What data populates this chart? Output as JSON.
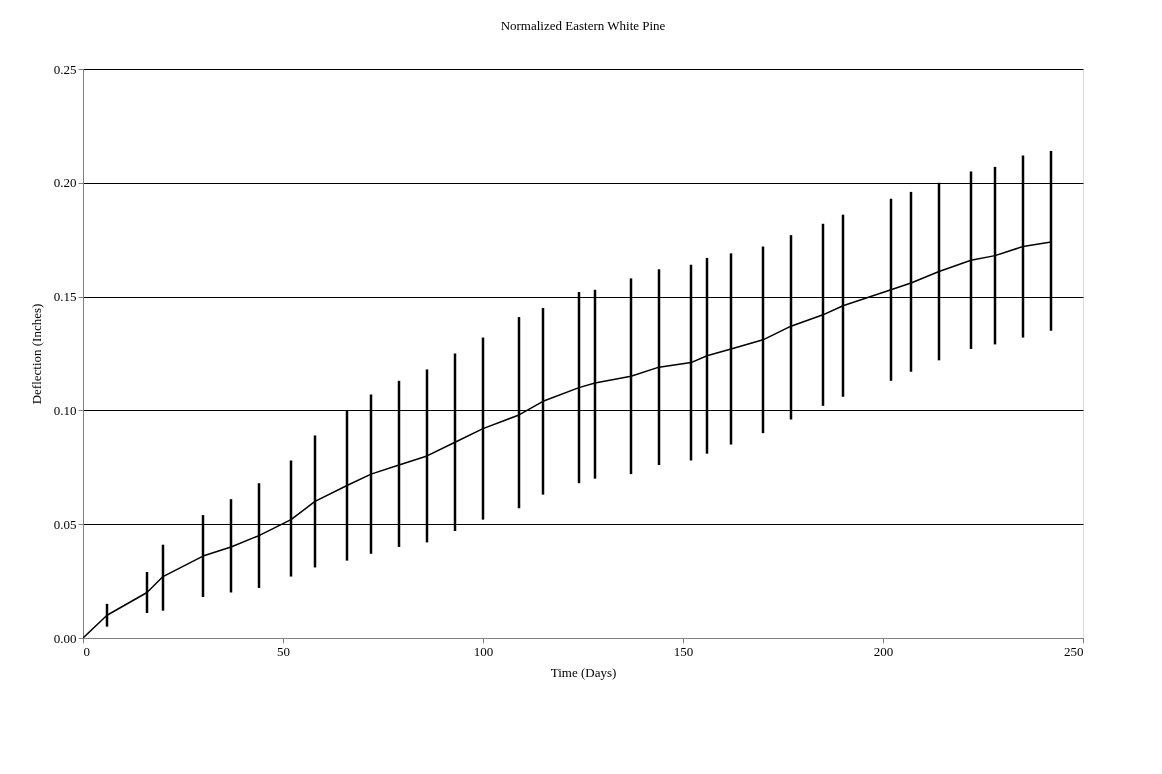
{
  "chart_data": {
    "type": "line",
    "title": "Normalized Eastern White Pine",
    "xlabel": "Time (Days)",
    "ylabel": "Deflection (Inches)",
    "x": [
      0,
      6,
      16,
      20,
      30,
      37,
      44,
      52,
      58,
      66,
      72,
      79,
      86,
      93,
      100,
      109,
      115,
      124,
      128,
      137,
      144,
      152,
      156,
      162,
      170,
      177,
      185,
      190,
      202,
      207,
      214,
      222,
      228,
      235,
      242
    ],
    "series": [
      {
        "color": "#000000",
        "values": [
          0,
          0.01,
          0.02,
          0.027,
          0.036,
          0.04,
          0.045,
          0.052,
          0.06,
          0.067,
          0.072,
          0.076,
          0.08,
          0.086,
          0.092,
          0.098,
          0.104,
          0.11,
          0.112,
          0.115,
          0.119,
          0.121,
          0.124,
          0.127,
          0.131,
          0.137,
          0.142,
          0.146,
          0.153,
          0.156,
          0.161,
          0.166,
          0.168,
          0.172,
          0.174
        ],
        "errors": [
          null,
          [
            0.005,
            0.015
          ],
          [
            0.011,
            0.029
          ],
          [
            0.012,
            0.041
          ],
          [
            0.018,
            0.054
          ],
          [
            0.02,
            0.061
          ],
          [
            0.022,
            0.068
          ],
          [
            0.027,
            0.078
          ],
          [
            0.031,
            0.089
          ],
          [
            0.034,
            0.1
          ],
          [
            0.037,
            0.107
          ],
          [
            0.04,
            0.113
          ],
          [
            0.042,
            0.118
          ],
          [
            0.047,
            0.125
          ],
          [
            0.052,
            0.132
          ],
          [
            0.057,
            0.141
          ],
          [
            0.063,
            0.145
          ],
          [
            0.068,
            0.152
          ],
          [
            0.07,
            0.153
          ],
          [
            0.072,
            0.158
          ],
          [
            0.076,
            0.162
          ],
          [
            0.078,
            0.164
          ],
          [
            0.081,
            0.167
          ],
          [
            0.085,
            0.169
          ],
          [
            0.09,
            0.172
          ],
          [
            0.096,
            0.177
          ],
          [
            0.102,
            0.182
          ],
          [
            0.106,
            0.186
          ],
          [
            0.113,
            0.193
          ],
          [
            0.117,
            0.196
          ],
          [
            0.122,
            0.2
          ],
          [
            0.127,
            0.205
          ],
          [
            0.129,
            0.207
          ],
          [
            0.132,
            0.212
          ],
          [
            0.135,
            0.214
          ]
        ]
      }
    ],
    "xlim": [
      0,
      250
    ],
    "xticks": [
      0,
      50,
      100,
      150,
      200,
      250
    ],
    "ylim": [
      0,
      0.25
    ],
    "yticks": [
      {
        "value": 0,
        "label": "0.00"
      },
      {
        "value": 0.05,
        "label": "0.05"
      },
      {
        "value": 0.1,
        "label": "0.10"
      },
      {
        "value": 0.15,
        "label": "0.15"
      },
      {
        "value": 0.2,
        "label": "0.20"
      },
      {
        "value": 0.25,
        "label": "0.25"
      }
    ],
    "grid": "y",
    "marker": "none",
    "line_style": "solid"
  }
}
